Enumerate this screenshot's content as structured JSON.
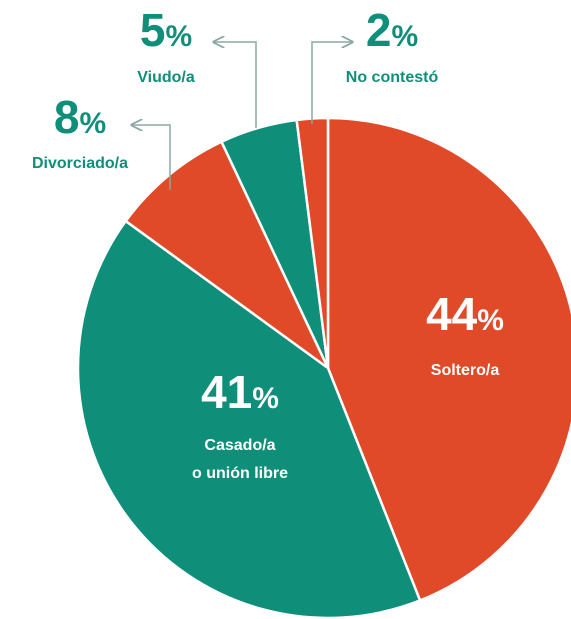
{
  "chart_data": {
    "type": "pie",
    "categories": [
      "Soltero/a",
      "Casado/a\no unión libre",
      "Divorciado/a",
      "Viudo/a",
      "No contestó"
    ],
    "values": [
      44,
      41,
      8,
      5,
      2
    ],
    "value_labels": [
      "44%",
      "41%",
      "8%",
      "5%",
      "2%"
    ],
    "colors": [
      "#e04a28",
      "#0f8f7a",
      "#e04a28",
      "#0f8f7a",
      "#e04a28"
    ]
  }
}
